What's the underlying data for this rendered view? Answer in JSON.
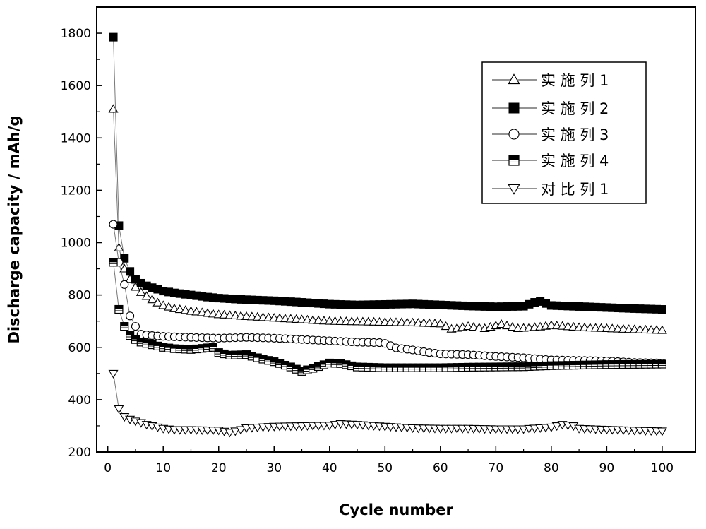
{
  "chart_data": {
    "type": "scatter",
    "xlabel": "Cycle number",
    "ylabel": "Discharge capacity / mAh/g",
    "xlim": [
      -2,
      106
    ],
    "ylim": [
      200,
      1900
    ],
    "xticks": [
      0,
      10,
      20,
      30,
      40,
      50,
      60,
      70,
      80,
      90,
      100
    ],
    "yticks": [
      200,
      400,
      600,
      800,
      1000,
      1200,
      1400,
      1600,
      1800
    ],
    "grid": false,
    "legend_position": "top-right",
    "series": [
      {
        "name": "实 施 列 1",
        "marker": "triangle-up-open",
        "keypoints": [
          [
            1,
            1510
          ],
          [
            2,
            980
          ],
          [
            3,
            900
          ],
          [
            4,
            860
          ],
          [
            5,
            830
          ],
          [
            6,
            810
          ],
          [
            7,
            795
          ],
          [
            8,
            782
          ],
          [
            9,
            770
          ],
          [
            10,
            760
          ],
          [
            12,
            748
          ],
          [
            15,
            738
          ],
          [
            20,
            725
          ],
          [
            25,
            718
          ],
          [
            30,
            712
          ],
          [
            35,
            706
          ],
          [
            40,
            700
          ],
          [
            45,
            698
          ],
          [
            50,
            696
          ],
          [
            55,
            694
          ],
          [
            60,
            690
          ],
          [
            62,
            670
          ],
          [
            65,
            680
          ],
          [
            68,
            672
          ],
          [
            71,
            688
          ],
          [
            74,
            672
          ],
          [
            78,
            678
          ],
          [
            80,
            684
          ],
          [
            85,
            676
          ],
          [
            90,
            672
          ],
          [
            95,
            668
          ],
          [
            100,
            665
          ]
        ]
      },
      {
        "name": "实 施 列 2",
        "marker": "square-filled",
        "keypoints": [
          [
            1,
            1785
          ],
          [
            2,
            1065
          ],
          [
            3,
            940
          ],
          [
            4,
            890
          ],
          [
            5,
            860
          ],
          [
            6,
            845
          ],
          [
            7,
            835
          ],
          [
            8,
            828
          ],
          [
            9,
            822
          ],
          [
            10,
            815
          ],
          [
            12,
            808
          ],
          [
            15,
            800
          ],
          [
            18,
            792
          ],
          [
            20,
            788
          ],
          [
            25,
            782
          ],
          [
            30,
            778
          ],
          [
            35,
            772
          ],
          [
            40,
            765
          ],
          [
            45,
            762
          ],
          [
            50,
            764
          ],
          [
            55,
            766
          ],
          [
            60,
            762
          ],
          [
            65,
            758
          ],
          [
            70,
            755
          ],
          [
            75,
            757
          ],
          [
            77,
            772
          ],
          [
            78,
            775
          ],
          [
            80,
            760
          ],
          [
            85,
            756
          ],
          [
            90,
            752
          ],
          [
            95,
            748
          ],
          [
            100,
            745
          ]
        ]
      },
      {
        "name": "实 施 列 3",
        "marker": "circle-open",
        "keypoints": [
          [
            1,
            1070
          ],
          [
            2,
            925
          ],
          [
            3,
            840
          ],
          [
            4,
            720
          ],
          [
            5,
            680
          ],
          [
            6,
            650
          ],
          [
            8,
            645
          ],
          [
            10,
            642
          ],
          [
            15,
            638
          ],
          [
            20,
            635
          ],
          [
            25,
            638
          ],
          [
            30,
            635
          ],
          [
            35,
            630
          ],
          [
            40,
            625
          ],
          [
            45,
            620
          ],
          [
            49,
            618
          ],
          [
            50,
            615
          ],
          [
            52,
            598
          ],
          [
            55,
            590
          ],
          [
            58,
            580
          ],
          [
            60,
            575
          ],
          [
            65,
            572
          ],
          [
            70,
            565
          ],
          [
            75,
            560
          ],
          [
            78,
            555
          ],
          [
            80,
            552
          ],
          [
            85,
            550
          ],
          [
            90,
            548
          ],
          [
            95,
            542
          ],
          [
            100,
            540
          ]
        ]
      },
      {
        "name": "实 施 列 4",
        "marker": "square-half",
        "keypoints": [
          [
            1,
            925
          ],
          [
            2,
            745
          ],
          [
            3,
            680
          ],
          [
            4,
            645
          ],
          [
            5,
            630
          ],
          [
            6,
            620
          ],
          [
            8,
            610
          ],
          [
            10,
            600
          ],
          [
            12,
            595
          ],
          [
            15,
            592
          ],
          [
            19,
            600
          ],
          [
            20,
            580
          ],
          [
            22,
            570
          ],
          [
            25,
            572
          ],
          [
            27,
            560
          ],
          [
            30,
            545
          ],
          [
            33,
            525
          ],
          [
            35,
            508
          ],
          [
            37,
            520
          ],
          [
            40,
            540
          ],
          [
            42,
            538
          ],
          [
            45,
            525
          ],
          [
            50,
            522
          ],
          [
            55,
            522
          ],
          [
            60,
            522
          ],
          [
            65,
            524
          ],
          [
            70,
            525
          ],
          [
            75,
            526
          ],
          [
            80,
            530
          ],
          [
            85,
            532
          ],
          [
            90,
            534
          ],
          [
            95,
            535
          ],
          [
            100,
            536
          ]
        ]
      },
      {
        "name": "对 比 列 1",
        "marker": "triangle-down-open",
        "keypoints": [
          [
            1,
            500
          ],
          [
            2,
            365
          ],
          [
            3,
            335
          ],
          [
            4,
            325
          ],
          [
            5,
            318
          ],
          [
            6,
            312
          ],
          [
            7,
            305
          ],
          [
            8,
            300
          ],
          [
            10,
            290
          ],
          [
            12,
            285
          ],
          [
            15,
            285
          ],
          [
            20,
            283
          ],
          [
            22,
            275
          ],
          [
            24,
            285
          ],
          [
            25,
            292
          ],
          [
            30,
            298
          ],
          [
            35,
            300
          ],
          [
            40,
            302
          ],
          [
            42,
            308
          ],
          [
            45,
            305
          ],
          [
            50,
            298
          ],
          [
            55,
            292
          ],
          [
            60,
            290
          ],
          [
            65,
            290
          ],
          [
            70,
            288
          ],
          [
            75,
            288
          ],
          [
            80,
            295
          ],
          [
            82,
            305
          ],
          [
            84,
            300
          ],
          [
            85,
            290
          ],
          [
            90,
            286
          ],
          [
            95,
            283
          ],
          [
            100,
            280
          ]
        ]
      }
    ]
  },
  "colors": {
    "stroke": "#000000",
    "line": "#777777",
    "background": "#ffffff"
  }
}
